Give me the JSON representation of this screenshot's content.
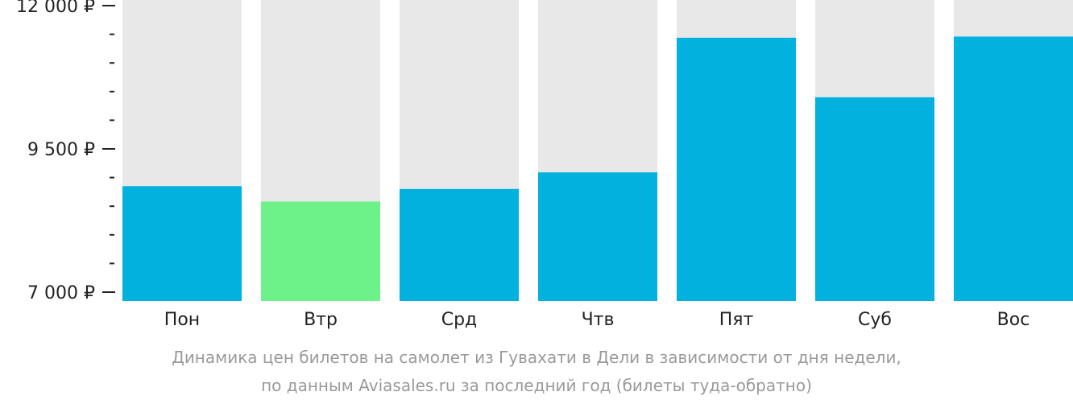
{
  "chart_data": {
    "type": "bar",
    "categories": [
      "Пон",
      "Втр",
      "Срд",
      "Чтв",
      "Пят",
      "Суб",
      "Вос"
    ],
    "values": [
      8850,
      8580,
      8800,
      9090,
      11440,
      10400,
      11460
    ],
    "ylim": [
      7000,
      12000
    ],
    "yticks": [
      7000,
      9500,
      12000
    ],
    "ytick_labels": [
      "7 000 ₽",
      "9 500 ₽",
      "12 000 ₽"
    ],
    "minor_ticks_between": 4,
    "grid": false,
    "highlight_index": 1,
    "colors": {
      "bar": "#02b1dd",
      "highlight": "#6df289",
      "background_bar": "#e8e8e8",
      "axis": "#222222"
    }
  },
  "caption": {
    "line1": "Динамика цен билетов на самолет из Гувахати в Дели в зависимости от дня недели,",
    "line2": "по данным Aviasales.ru за последний год (билеты туда-обратно)"
  }
}
